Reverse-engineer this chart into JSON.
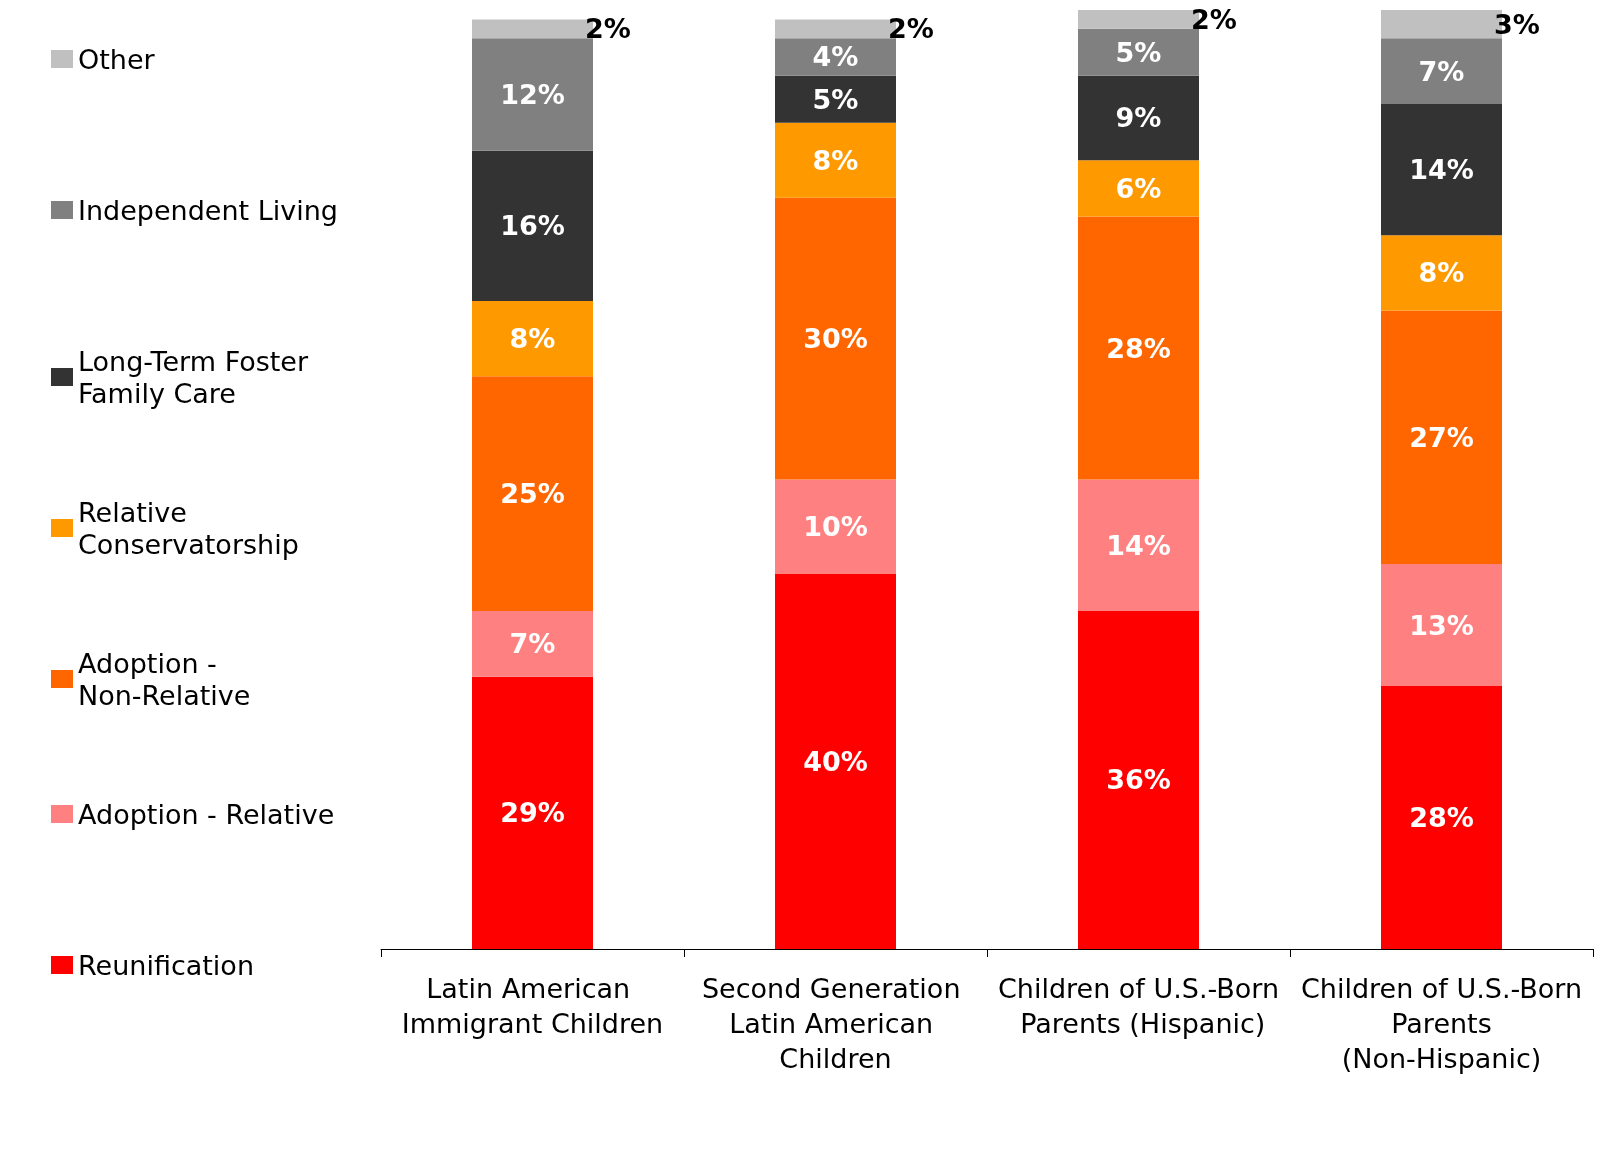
{
  "chart_data": {
    "type": "bar",
    "stacked": true,
    "legend": "left",
    "categories": [
      "Latin American Immigrant Children",
      "Second Generation Latin American Children",
      "Children of U.S.-Born Parents (Hispanic)",
      "Children of U.S.-Born Parents (Non-Hispanic)"
    ],
    "series": [
      {
        "name": "Reunification",
        "color": "#ff0000",
        "values": [
          29,
          40,
          36,
          28
        ],
        "value_labels": [
          "29%",
          "40%",
          "36%",
          "28%"
        ]
      },
      {
        "name": "Adoption - Relative",
        "color": "#ff8080",
        "values": [
          7,
          10,
          14,
          13
        ],
        "value_labels": [
          "7%",
          "10%",
          "14%",
          "13%"
        ]
      },
      {
        "name": "Adoption - Non-Relative",
        "color": "#ff6600",
        "values": [
          25,
          30,
          28,
          27
        ],
        "value_labels": [
          "25%",
          "30%",
          "28%",
          "27%"
        ]
      },
      {
        "name": "Relative Conservatorship",
        "color": "#ff9900",
        "values": [
          8,
          8,
          6,
          8
        ],
        "value_labels": [
          "8%",
          "8%",
          "6%",
          "8%"
        ]
      },
      {
        "name": "Long-Term Foster Family Care",
        "color": "#333333",
        "values": [
          16,
          5,
          9,
          14
        ],
        "value_labels": [
          "16%",
          "5%",
          "9%",
          "14%"
        ]
      },
      {
        "name": "Independent Living",
        "color": "#808080",
        "values": [
          12,
          4,
          5,
          7
        ],
        "value_labels": [
          "12%",
          "4%",
          "5%",
          "7%"
        ]
      },
      {
        "name": "Other",
        "color": "#c0c0c0",
        "values": [
          2,
          2,
          2,
          3
        ],
        "value_labels": [
          "2%",
          "2%",
          "2%",
          "3%"
        ]
      }
    ]
  }
}
